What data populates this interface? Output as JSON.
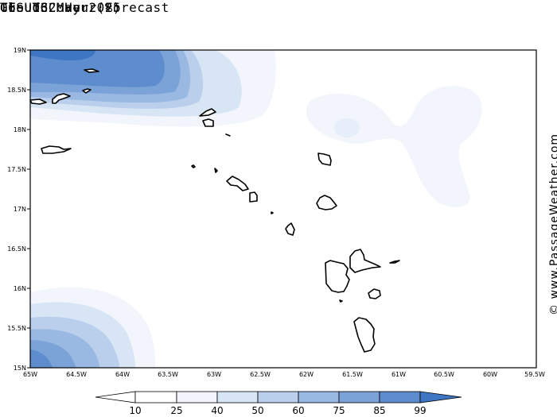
{
  "header": {
    "title": "Cloud Cover (%)",
    "subtitle": "GFS 132 Hour Forecast",
    "date": "Tue 06 May 2025",
    "time": "06 UTC"
  },
  "credit": "© www.PassageWeather.com",
  "map": {
    "lat_range": [
      15,
      19
    ],
    "lon_range": [
      -65,
      -59.5
    ],
    "lat_labels": [
      "19N",
      "18.5N",
      "18N",
      "17.5N",
      "17N",
      "16.5N",
      "16N",
      "15.5N",
      "15N"
    ],
    "lon_labels": [
      "65W",
      "64.5W",
      "64W",
      "63.5W",
      "63W",
      "62.5W",
      "62W",
      "61.5W",
      "61W",
      "60.5W",
      "60W",
      "59.5W"
    ]
  },
  "legend": {
    "values": [
      "10",
      "25",
      "40",
      "50",
      "60",
      "75",
      "85",
      "99"
    ],
    "colors": [
      "#ffffff",
      "#f2f6fc",
      "#d8e5f5",
      "#b9cfec",
      "#9ab9e2",
      "#7ca3d8",
      "#5e8dce",
      "#3f76c4"
    ]
  }
}
